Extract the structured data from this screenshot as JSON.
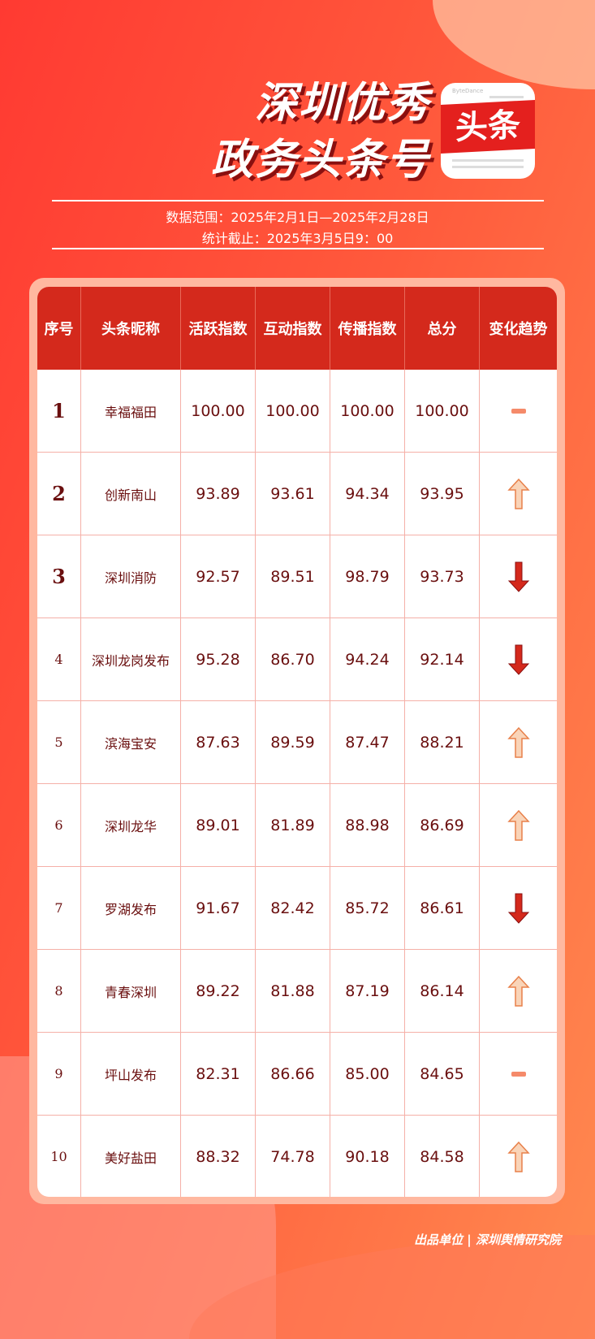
{
  "header": {
    "title_line1": "深圳优秀",
    "title_line2": "政务头条号",
    "logo_text": "头条",
    "logo_brand": "ByteDance",
    "date_range": "数据范围：2025年2月1日—2025年2月28日",
    "cutoff": "统计截止：2025年3月5日9：00"
  },
  "colors": {
    "header_bg": "#d4291c",
    "up": "#f9d4b8",
    "down": "#d4291c",
    "flat": "#f58a6a"
  },
  "table": {
    "columns": [
      "序号",
      "头条昵称",
      "活跃指数",
      "互动指数",
      "传播指数",
      "总分",
      "变化趋势"
    ],
    "rows": [
      {
        "rank": "1",
        "name": "幸福福田",
        "active": "100.00",
        "interact": "100.00",
        "spread": "100.00",
        "total": "100.00",
        "trend": "flat"
      },
      {
        "rank": "2",
        "name": "创新南山",
        "active": "93.89",
        "interact": "93.61",
        "spread": "94.34",
        "total": "93.95",
        "trend": "up"
      },
      {
        "rank": "3",
        "name": "深圳消防",
        "active": "92.57",
        "interact": "89.51",
        "spread": "98.79",
        "total": "93.73",
        "trend": "down"
      },
      {
        "rank": "4",
        "name": "深圳龙岗发布",
        "active": "95.28",
        "interact": "86.70",
        "spread": "94.24",
        "total": "92.14",
        "trend": "down"
      },
      {
        "rank": "5",
        "name": "滨海宝安",
        "active": "87.63",
        "interact": "89.59",
        "spread": "87.47",
        "total": "88.21",
        "trend": "up"
      },
      {
        "rank": "6",
        "name": "深圳龙华",
        "active": "89.01",
        "interact": "81.89",
        "spread": "88.98",
        "total": "86.69",
        "trend": "up"
      },
      {
        "rank": "7",
        "name": "罗湖发布",
        "active": "91.67",
        "interact": "82.42",
        "spread": "85.72",
        "total": "86.61",
        "trend": "down"
      },
      {
        "rank": "8",
        "name": "青春深圳",
        "active": "89.22",
        "interact": "81.88",
        "spread": "87.19",
        "total": "86.14",
        "trend": "up"
      },
      {
        "rank": "9",
        "name": "坪山发布",
        "active": "82.31",
        "interact": "86.66",
        "spread": "85.00",
        "total": "84.65",
        "trend": "flat"
      },
      {
        "rank": "10",
        "name": "美好盐田",
        "active": "88.32",
        "interact": "74.78",
        "spread": "90.18",
        "total": "84.58",
        "trend": "up"
      }
    ]
  },
  "footer": {
    "text": "出品单位 | 深圳舆情研究院"
  }
}
